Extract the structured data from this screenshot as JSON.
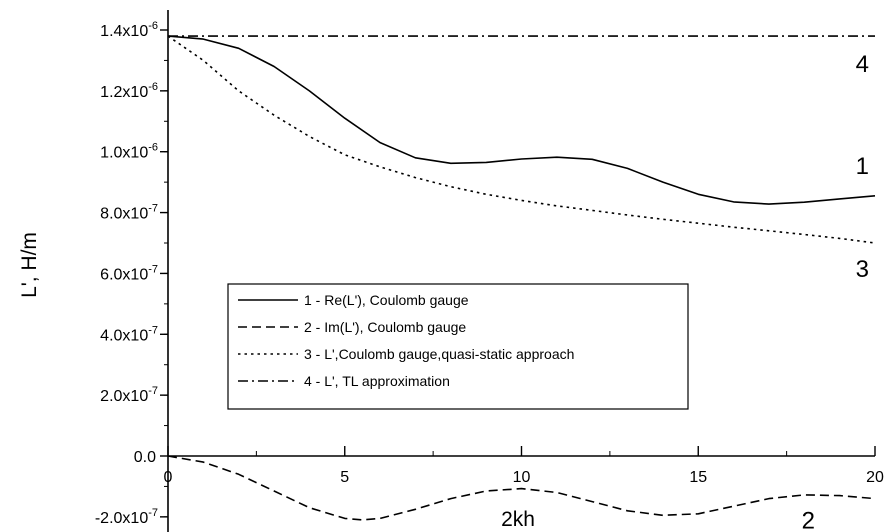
{
  "chart_data": {
    "type": "line",
    "xlabel": "2kh",
    "ylabel": "L', H/m",
    "xlim": [
      0,
      20
    ],
    "ylim": [
      -2.4e-07,
      1.48e-06
    ],
    "grid": false,
    "legend_position": "lower-left",
    "x_ticks": [
      {
        "value": 0,
        "label": "0"
      },
      {
        "value": 5,
        "label": "5"
      },
      {
        "value": 10,
        "label": "10"
      },
      {
        "value": 15,
        "label": "15"
      },
      {
        "value": 20,
        "label": "20"
      }
    ],
    "y_ticks": [
      {
        "value": -2e-07,
        "mant": "-2.0x10",
        "exp": "-7"
      },
      {
        "value": 0,
        "mant": "0.0",
        "exp": ""
      },
      {
        "value": 2e-07,
        "mant": "2.0x10",
        "exp": "-7"
      },
      {
        "value": 4e-07,
        "mant": "4.0x10",
        "exp": "-7"
      },
      {
        "value": 6e-07,
        "mant": "6.0x10",
        "exp": "-7"
      },
      {
        "value": 8e-07,
        "mant": "8.0x10",
        "exp": "-7"
      },
      {
        "value": 1e-06,
        "mant": "1.0x10",
        "exp": "-6"
      },
      {
        "value": 1.2e-06,
        "mant": "1.2x10",
        "exp": "-6"
      },
      {
        "value": 1.4e-06,
        "mant": "1.4x10",
        "exp": "-6"
      }
    ],
    "series": [
      {
        "name": "1 - Re(L'), Coulomb gauge",
        "curve_label": "1",
        "dash": "solid",
        "x": [
          0,
          1,
          2,
          3,
          4,
          5,
          6,
          7,
          8,
          9,
          10,
          11,
          12,
          13,
          14,
          15,
          16,
          17,
          18,
          19,
          20
        ],
        "y": [
          1.38e-06,
          1.37e-06,
          1.34e-06,
          1.28e-06,
          1.2e-06,
          1.11e-06,
          1.03e-06,
          9.8e-07,
          9.62e-07,
          9.65e-07,
          9.76e-07,
          9.82e-07,
          9.75e-07,
          9.45e-07,
          9e-07,
          8.6e-07,
          8.35e-07,
          8.28e-07,
          8.34e-07,
          8.45e-07,
          8.55e-07
        ]
      },
      {
        "name": "2 - Im(L'), Coulomb gauge",
        "curve_label": "2",
        "dash": "dashed",
        "x": [
          0,
          1,
          2,
          3,
          4,
          5,
          5.5,
          6,
          7,
          8,
          9,
          10,
          11,
          12,
          13,
          14,
          15,
          16,
          17,
          18,
          19,
          20
        ],
        "y": [
          0,
          -2e-08,
          -6e-08,
          -1.15e-07,
          -1.7e-07,
          -2.05e-07,
          -2.1e-07,
          -2.05e-07,
          -1.75e-07,
          -1.4e-07,
          -1.15e-07,
          -1.07e-07,
          -1.2e-07,
          -1.5e-07,
          -1.8e-07,
          -1.95e-07,
          -1.9e-07,
          -1.65e-07,
          -1.4e-07,
          -1.28e-07,
          -1.3e-07,
          -1.4e-07
        ]
      },
      {
        "name": "3 - L',Coulomb gauge,quasi-static approach",
        "curve_label": "3",
        "dash": "dotted",
        "x": [
          0,
          1,
          2,
          3,
          4,
          5,
          6,
          7,
          8,
          9,
          10,
          11,
          12,
          13,
          14,
          15,
          16,
          17,
          18,
          19,
          20
        ],
        "y": [
          1.38e-06,
          1.3e-06,
          1.2e-06,
          1.12e-06,
          1.05e-06,
          9.9e-07,
          9.5e-07,
          9.15e-07,
          8.85e-07,
          8.6e-07,
          8.4e-07,
          8.22e-07,
          8.07e-07,
          7.92e-07,
          7.78e-07,
          7.65e-07,
          7.52e-07,
          7.4e-07,
          7.28e-07,
          7.15e-07,
          7e-07
        ]
      },
      {
        "name": "4 - L', TL approximation",
        "curve_label": "4",
        "dash": "dashdot",
        "x": [
          0,
          20
        ],
        "y": [
          1.38e-06,
          1.38e-06
        ]
      }
    ]
  }
}
